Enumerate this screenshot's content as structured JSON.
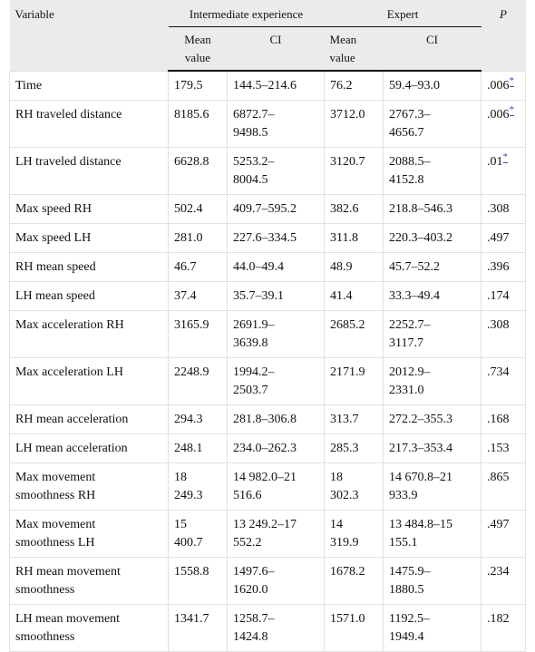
{
  "table": {
    "header": {
      "variable": "Variable",
      "group1": "Intermediate experience",
      "group2": "Expert",
      "p": "P",
      "mean": "Mean value",
      "ci": "CI"
    },
    "rows": [
      [
        "Time",
        "179.5",
        "144.5–214.6",
        "76.2",
        "59.4–93.0",
        ".006",
        "*"
      ],
      [
        "RH traveled distance",
        "8185.6",
        "6872.7–9498.5",
        "3712.0",
        "2767.3–4656.7",
        ".006",
        "*"
      ],
      [
        "LH traveled distance",
        "6628.8",
        "5253.2–8004.5",
        "3120.7",
        "2088.5–4152.8",
        ".01",
        "*"
      ],
      [
        "Max speed RH",
        "502.4",
        "409.7–595.2",
        "382.6",
        "218.8–546.3",
        ".308"
      ],
      [
        "Max speed LH",
        "281.0",
        "227.6–334.5",
        "311.8",
        "220.3–403.2",
        ".497"
      ],
      [
        "RH mean speed",
        "46.7",
        "44.0–49.4",
        "48.9",
        "45.7–52.2",
        ".396"
      ],
      [
        "LH mean speed",
        "37.4",
        "35.7–39.1",
        "41.4",
        "33.3–49.4",
        ".174"
      ],
      [
        "Max acceleration RH",
        "3165.9",
        "2691.9–3639.8",
        "2685.2",
        "2252.7–3117.7",
        ".308"
      ],
      [
        "Max acceleration LH",
        "2248.9",
        "1994.2–2503.7",
        "2171.9",
        "2012.9–2331.0",
        ".734"
      ],
      [
        "RH mean acceleration",
        "294.3",
        "281.8–306.8",
        "313.7",
        "272.2–355.3",
        ".168"
      ],
      [
        "LH mean acceleration",
        "248.1",
        "234.0–262.3",
        "285.3",
        "217.3–353.4",
        ".153"
      ],
      [
        "Max movement smoothness RH",
        "18 249.3",
        "14 982.0–21 516.6",
        "18 302.3",
        "14 670.8–21 933.9",
        ".865"
      ],
      [
        "Max movement smoothness LH",
        "15 400.7",
        "13 249.2–17 552.2",
        "14 319.9",
        "13 484.8–15 155.1",
        ".497"
      ],
      [
        "RH mean movement smoothness",
        "1558.8",
        "1497.6–1620.0",
        "1678.2",
        "1475.9–1880.5",
        ".234"
      ],
      [
        "LH mean movement smoothness",
        "1341.7",
        "1258.7–1424.8",
        "1571.0",
        "1192.5–1949.4",
        ".182"
      ]
    ]
  }
}
